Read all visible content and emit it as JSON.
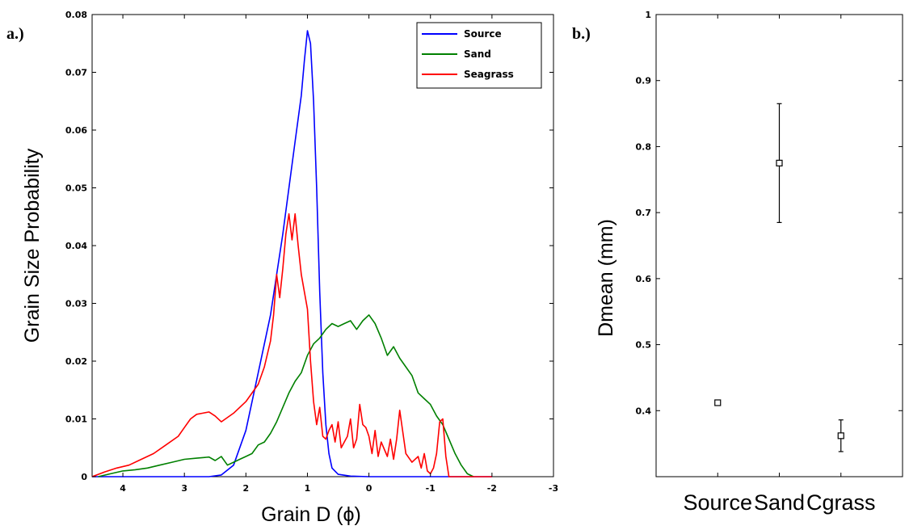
{
  "panels": {
    "a_label": "a.)",
    "b_label": "b.)"
  },
  "chart_data": [
    {
      "type": "line",
      "xlabel": "Grain D (ϕ)",
      "ylabel": "Grain Size Probability",
      "xlim": [
        -3,
        4.5
      ],
      "x_reversed": true,
      "ylim": [
        0,
        0.08
      ],
      "x_ticks": [
        4,
        3,
        2,
        1,
        0,
        -1,
        -2,
        -3
      ],
      "x_tick_labels": [
        "4",
        "3",
        "2",
        "1",
        "0",
        "-1",
        "-2",
        "-3"
      ],
      "y_ticks": [
        0,
        0.01,
        0.02,
        0.03,
        0.04,
        0.05,
        0.06,
        0.07,
        0.08
      ],
      "y_tick_labels": [
        "0",
        "0.01",
        "0.02",
        "0.03",
        "0.04",
        "0.05",
        "0.06",
        "0.07",
        "0.08"
      ],
      "legend_position": "top-right",
      "grid": false,
      "series": [
        {
          "name": "Source",
          "color": "#0000ff",
          "x": [
            4.5,
            4.0,
            3.5,
            3.0,
            2.6,
            2.4,
            2.2,
            2.0,
            1.8,
            1.6,
            1.5,
            1.4,
            1.3,
            1.2,
            1.1,
            1.05,
            1.0,
            0.95,
            0.9,
            0.85,
            0.8,
            0.75,
            0.7,
            0.65,
            0.6,
            0.5,
            0.3,
            0.0,
            -1.0,
            -2.0
          ],
          "y": [
            0.0,
            0.0,
            0.0,
            0.0,
            0.0,
            0.0003,
            0.002,
            0.008,
            0.018,
            0.028,
            0.035,
            0.042,
            0.05,
            0.058,
            0.066,
            0.072,
            0.0772,
            0.075,
            0.065,
            0.05,
            0.032,
            0.018,
            0.009,
            0.004,
            0.0015,
            0.0004,
            0.0001,
            0.0,
            0.0,
            0.0
          ]
        },
        {
          "name": "Sand",
          "color": "#008000",
          "x": [
            4.4,
            4.2,
            4.0,
            3.8,
            3.6,
            3.4,
            3.2,
            3.0,
            2.8,
            2.6,
            2.5,
            2.4,
            2.3,
            2.2,
            2.1,
            2.0,
            1.9,
            1.8,
            1.7,
            1.6,
            1.5,
            1.4,
            1.3,
            1.2,
            1.1,
            1.0,
            0.9,
            0.8,
            0.7,
            0.6,
            0.5,
            0.4,
            0.3,
            0.2,
            0.1,
            0.0,
            -0.1,
            -0.2,
            -0.3,
            -0.4,
            -0.5,
            -0.6,
            -0.7,
            -0.8,
            -0.9,
            -1.0,
            -1.1,
            -1.2,
            -1.3,
            -1.4,
            -1.5,
            -1.6,
            -1.7
          ],
          "y": [
            0.0,
            0.0005,
            0.001,
            0.0012,
            0.0015,
            0.002,
            0.0025,
            0.003,
            0.0032,
            0.0034,
            0.0028,
            0.0035,
            0.002,
            0.0025,
            0.003,
            0.0035,
            0.004,
            0.0055,
            0.006,
            0.0075,
            0.0095,
            0.012,
            0.0145,
            0.0165,
            0.018,
            0.021,
            0.023,
            0.024,
            0.0255,
            0.0265,
            0.026,
            0.0265,
            0.027,
            0.0255,
            0.027,
            0.028,
            0.0265,
            0.024,
            0.021,
            0.0225,
            0.0205,
            0.019,
            0.0175,
            0.0145,
            0.0135,
            0.0125,
            0.0105,
            0.009,
            0.0065,
            0.004,
            0.002,
            0.0005,
            0.0
          ]
        },
        {
          "name": "Seagrass",
          "color": "#ff0000",
          "x": [
            4.5,
            4.3,
            4.1,
            3.9,
            3.7,
            3.5,
            3.3,
            3.1,
            3.0,
            2.9,
            2.8,
            2.7,
            2.6,
            2.5,
            2.4,
            2.2,
            2.0,
            1.8,
            1.7,
            1.6,
            1.55,
            1.5,
            1.45,
            1.4,
            1.35,
            1.3,
            1.25,
            1.2,
            1.15,
            1.1,
            1.05,
            1.0,
            0.95,
            0.9,
            0.85,
            0.8,
            0.75,
            0.7,
            0.65,
            0.6,
            0.55,
            0.5,
            0.45,
            0.4,
            0.35,
            0.3,
            0.25,
            0.2,
            0.15,
            0.1,
            0.05,
            0.0,
            -0.05,
            -0.1,
            -0.15,
            -0.2,
            -0.3,
            -0.35,
            -0.4,
            -0.45,
            -0.5,
            -0.6,
            -0.7,
            -0.8,
            -0.85,
            -0.9,
            -0.95,
            -1.0,
            -1.05,
            -1.1,
            -1.15,
            -1.2,
            -1.25,
            -1.3,
            -1.5,
            -2.0
          ],
          "y": [
            0.0,
            0.0008,
            0.0015,
            0.002,
            0.003,
            0.004,
            0.0055,
            0.007,
            0.0085,
            0.01,
            0.0108,
            0.011,
            0.0112,
            0.0105,
            0.0095,
            0.011,
            0.013,
            0.016,
            0.019,
            0.0235,
            0.028,
            0.035,
            0.031,
            0.036,
            0.042,
            0.0455,
            0.041,
            0.0455,
            0.04,
            0.035,
            0.032,
            0.029,
            0.02,
            0.013,
            0.009,
            0.012,
            0.007,
            0.0065,
            0.008,
            0.009,
            0.006,
            0.0095,
            0.005,
            0.006,
            0.007,
            0.01,
            0.005,
            0.0065,
            0.0125,
            0.009,
            0.0085,
            0.007,
            0.004,
            0.008,
            0.0035,
            0.006,
            0.0035,
            0.0065,
            0.003,
            0.0065,
            0.0115,
            0.004,
            0.0025,
            0.0035,
            0.0015,
            0.004,
            0.001,
            0.0005,
            0.0015,
            0.004,
            0.0095,
            0.01,
            0.0035,
            0.0,
            0.0,
            0.0
          ]
        }
      ]
    },
    {
      "type": "scatter",
      "ylabel": "Dmean (mm)",
      "ylim": [
        0.3,
        1.0
      ],
      "y_ticks": [
        0.4,
        0.5,
        0.6,
        0.7,
        0.8,
        0.9,
        1.0
      ],
      "y_tick_labels": [
        "0.4",
        "0.5",
        "0.6",
        "0.7",
        "0.8",
        "0.9",
        "1"
      ],
      "categories": [
        "Source",
        "Sand",
        "Cgrass"
      ],
      "values": [
        0.412,
        0.775,
        0.362
      ],
      "error_low": [
        0.409,
        0.685,
        0.338
      ],
      "error_high": [
        0.416,
        0.865,
        0.386
      ],
      "marker": "square",
      "color": "#000000"
    }
  ]
}
